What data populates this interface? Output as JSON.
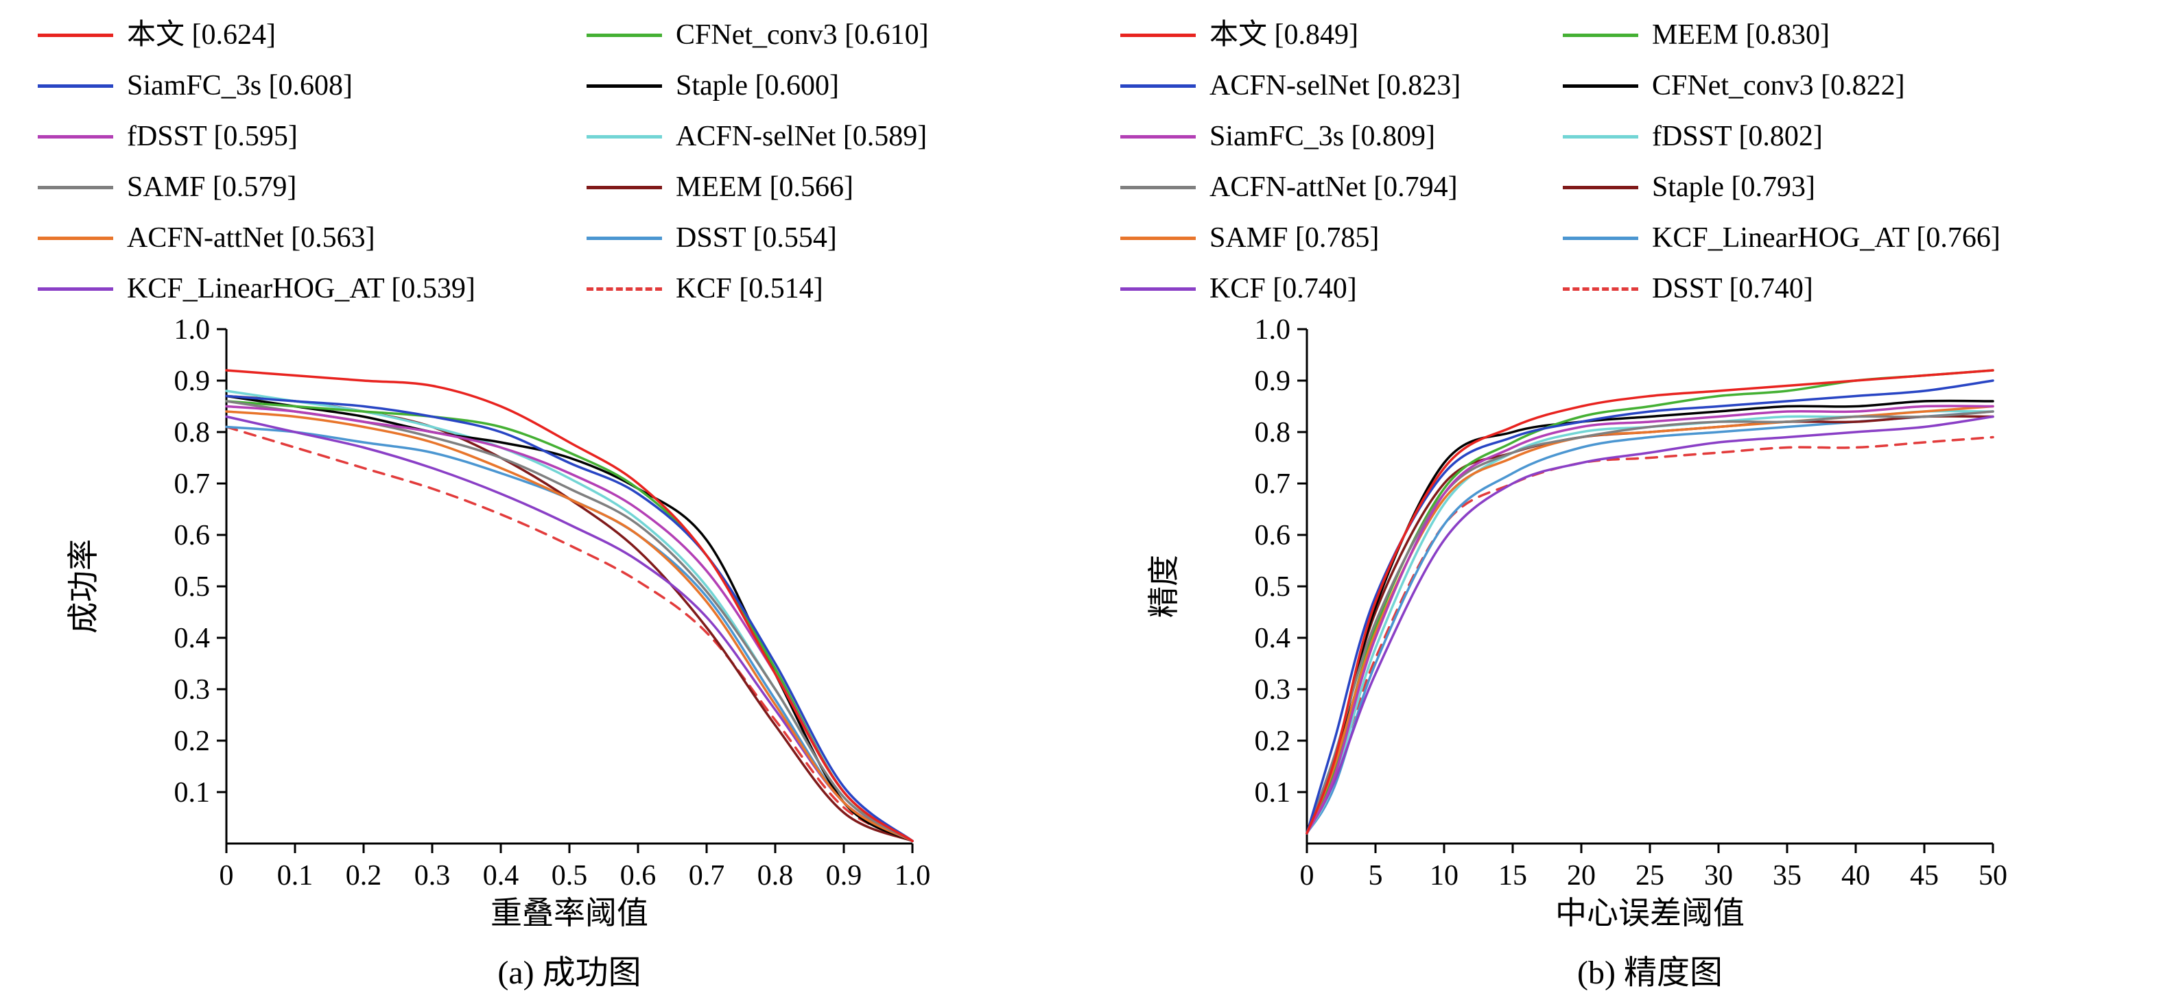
{
  "figure": {
    "background": "#ffffff"
  },
  "chart_data": [
    {
      "type": "line",
      "caption": "(a) 成功图",
      "xlabel": "重叠率阈值",
      "ylabel": "成功率",
      "xlim": [
        0,
        1.0
      ],
      "ylim": [
        0,
        1.0
      ],
      "grid": false,
      "legend_position": "top",
      "xtick_values": [
        0,
        0.1,
        0.2,
        0.3,
        0.4,
        0.5,
        0.6,
        0.7,
        0.8,
        0.9,
        1.0
      ],
      "xtick_labels": [
        "0",
        "0.1",
        "0.2",
        "0.3",
        "0.4",
        "0.5",
        "0.6",
        "0.7",
        "0.8",
        "0.9",
        "1.0"
      ],
      "ytick_values": [
        0.1,
        0.2,
        0.3,
        0.4,
        0.5,
        0.6,
        0.7,
        0.8,
        0.9,
        1.0
      ],
      "ytick_labels": [
        "0.1",
        "0.2",
        "0.3",
        "0.4",
        "0.5",
        "0.6",
        "0.7",
        "0.8",
        "0.9",
        "1.0"
      ],
      "x": [
        0,
        0.1,
        0.2,
        0.3,
        0.4,
        0.5,
        0.6,
        0.7,
        0.8,
        0.9,
        1.0
      ],
      "series": [
        {
          "label": "本文 [0.624]",
          "name": "本文",
          "score": 0.624,
          "color": "#e8231f",
          "dashed": false,
          "values": [
            0.92,
            0.91,
            0.9,
            0.89,
            0.85,
            0.78,
            0.7,
            0.56,
            0.33,
            0.1,
            0.005
          ]
        },
        {
          "label": "SiamFC_3s [0.608]",
          "name": "SiamFC_3s",
          "score": 0.608,
          "color": "#2845c4",
          "dashed": false,
          "values": [
            0.87,
            0.86,
            0.85,
            0.83,
            0.8,
            0.74,
            0.68,
            0.56,
            0.35,
            0.11,
            0.005
          ]
        },
        {
          "label": "fDSST [0.595]",
          "name": "fDSST",
          "score": 0.595,
          "color": "#b33fb5",
          "dashed": false,
          "values": [
            0.85,
            0.84,
            0.82,
            0.8,
            0.77,
            0.72,
            0.65,
            0.53,
            0.33,
            0.1,
            0.005
          ]
        },
        {
          "label": "SAMF [0.579]",
          "name": "SAMF",
          "score": 0.579,
          "color": "#7f7f7f",
          "dashed": false,
          "values": [
            0.86,
            0.84,
            0.82,
            0.79,
            0.75,
            0.69,
            0.62,
            0.49,
            0.3,
            0.09,
            0.005
          ]
        },
        {
          "label": "ACFN-attNet [0.563]",
          "name": "ACFN-attNet",
          "score": 0.563,
          "color": "#e8752b",
          "dashed": false,
          "values": [
            0.84,
            0.83,
            0.81,
            0.78,
            0.73,
            0.67,
            0.6,
            0.47,
            0.27,
            0.08,
            0.005
          ]
        },
        {
          "label": "KCF_LinearHOG_AT [0.539]",
          "name": "KCF_LinearHOG_AT",
          "score": 0.539,
          "color": "#8a3fc6",
          "dashed": false,
          "values": [
            0.83,
            0.8,
            0.77,
            0.73,
            0.68,
            0.62,
            0.55,
            0.44,
            0.26,
            0.08,
            0.005
          ]
        },
        {
          "label": "CFNet_conv3 [0.610]",
          "name": "CFNet_conv3",
          "score": 0.61,
          "color": "#44b033",
          "dashed": false,
          "values": [
            0.86,
            0.85,
            0.84,
            0.83,
            0.81,
            0.76,
            0.69,
            0.56,
            0.34,
            0.1,
            0.005
          ]
        },
        {
          "label": "Staple [0.600]",
          "name": "Staple",
          "score": 0.6,
          "color": "#000000",
          "dashed": false,
          "values": [
            0.87,
            0.85,
            0.83,
            0.8,
            0.78,
            0.75,
            0.69,
            0.59,
            0.33,
            0.08,
            0.005
          ]
        },
        {
          "label": "ACFN-selNet [0.589]",
          "name": "ACFN-selNet",
          "score": 0.589,
          "color": "#72d5d5",
          "dashed": false,
          "values": [
            0.88,
            0.86,
            0.84,
            0.81,
            0.77,
            0.71,
            0.63,
            0.5,
            0.3,
            0.09,
            0.005
          ]
        },
        {
          "label": "MEEM [0.566]",
          "name": "MEEM",
          "score": 0.566,
          "color": "#801a1a",
          "dashed": false,
          "values": [
            0.87,
            0.86,
            0.84,
            0.81,
            0.75,
            0.67,
            0.57,
            0.42,
            0.23,
            0.06,
            0.005
          ]
        },
        {
          "label": "DSST [0.554]",
          "name": "DSST",
          "score": 0.554,
          "color": "#4b96d1",
          "dashed": false,
          "values": [
            0.81,
            0.8,
            0.78,
            0.76,
            0.72,
            0.67,
            0.6,
            0.48,
            0.28,
            0.08,
            0.005
          ]
        },
        {
          "label": "KCF [0.514]",
          "name": "KCF",
          "score": 0.514,
          "color": "#e23b3b",
          "dashed": true,
          "values": [
            0.81,
            0.77,
            0.73,
            0.69,
            0.64,
            0.58,
            0.51,
            0.41,
            0.24,
            0.07,
            0.005
          ]
        }
      ]
    },
    {
      "type": "line",
      "caption": "(b) 精度图",
      "xlabel": "中心误差阈值",
      "ylabel": "精度",
      "xlim": [
        0,
        50
      ],
      "ylim": [
        0,
        1.0
      ],
      "grid": false,
      "legend_position": "top",
      "xtick_values": [
        0,
        5,
        10,
        15,
        20,
        25,
        30,
        35,
        40,
        45,
        50
      ],
      "xtick_labels": [
        "0",
        "5",
        "10",
        "15",
        "20",
        "25",
        "30",
        "35",
        "40",
        "45",
        "50"
      ],
      "ytick_values": [
        0.1,
        0.2,
        0.3,
        0.4,
        0.5,
        0.6,
        0.7,
        0.8,
        0.9,
        1.0
      ],
      "ytick_labels": [
        "0.1",
        "0.2",
        "0.3",
        "0.4",
        "0.5",
        "0.6",
        "0.7",
        "0.8",
        "0.9",
        "1.0"
      ],
      "x": [
        0,
        2,
        5,
        10,
        15,
        20,
        25,
        30,
        35,
        40,
        45,
        50
      ],
      "series": [
        {
          "label": "本文 [0.849]",
          "name": "本文",
          "score": 0.849,
          "color": "#e8231f",
          "dashed": false,
          "values": [
            0.02,
            0.16,
            0.47,
            0.73,
            0.81,
            0.85,
            0.87,
            0.88,
            0.89,
            0.9,
            0.91,
            0.92
          ]
        },
        {
          "label": "ACFN-selNet [0.823]",
          "name": "ACFN-selNet",
          "score": 0.823,
          "color": "#2845c4",
          "dashed": false,
          "values": [
            0.02,
            0.2,
            0.48,
            0.72,
            0.79,
            0.82,
            0.84,
            0.85,
            0.86,
            0.87,
            0.88,
            0.9
          ]
        },
        {
          "label": "SiamFC_3s [0.809]",
          "name": "SiamFC_3s",
          "score": 0.809,
          "color": "#b33fb5",
          "dashed": false,
          "values": [
            0.02,
            0.13,
            0.4,
            0.68,
            0.77,
            0.81,
            0.82,
            0.83,
            0.84,
            0.84,
            0.85,
            0.85
          ]
        },
        {
          "label": "ACFN-attNet [0.794]",
          "name": "ACFN-attNet",
          "score": 0.794,
          "color": "#7f7f7f",
          "dashed": false,
          "values": [
            0.02,
            0.17,
            0.43,
            0.68,
            0.76,
            0.79,
            0.81,
            0.82,
            0.82,
            0.83,
            0.83,
            0.84
          ]
        },
        {
          "label": "SAMF [0.785]",
          "name": "SAMF",
          "score": 0.785,
          "color": "#e8752b",
          "dashed": false,
          "values": [
            0.02,
            0.15,
            0.41,
            0.67,
            0.75,
            0.79,
            0.8,
            0.81,
            0.82,
            0.83,
            0.84,
            0.85
          ]
        },
        {
          "label": "KCF [0.740]",
          "name": "KCF",
          "score": 0.74,
          "color": "#8a3fc6",
          "dashed": false,
          "values": [
            0.02,
            0.12,
            0.33,
            0.59,
            0.7,
            0.74,
            0.76,
            0.78,
            0.79,
            0.8,
            0.81,
            0.83
          ]
        },
        {
          "label": "MEEM [0.830]",
          "name": "MEEM",
          "score": 0.83,
          "color": "#44b033",
          "dashed": false,
          "values": [
            0.02,
            0.14,
            0.42,
            0.69,
            0.78,
            0.83,
            0.85,
            0.87,
            0.88,
            0.9,
            0.91,
            0.92
          ]
        },
        {
          "label": "CFNet_conv3 [0.822]",
          "name": "CFNet_conv3",
          "score": 0.822,
          "color": "#000000",
          "dashed": false,
          "values": [
            0.02,
            0.15,
            0.46,
            0.74,
            0.8,
            0.82,
            0.83,
            0.84,
            0.85,
            0.85,
            0.86,
            0.86
          ]
        },
        {
          "label": "fDSST [0.802]",
          "name": "fDSST",
          "score": 0.802,
          "color": "#72d5d5",
          "dashed": false,
          "values": [
            0.02,
            0.12,
            0.38,
            0.66,
            0.76,
            0.8,
            0.81,
            0.82,
            0.83,
            0.83,
            0.84,
            0.84
          ]
        },
        {
          "label": "Staple [0.793]",
          "name": "Staple",
          "score": 0.793,
          "color": "#801a1a",
          "dashed": false,
          "values": [
            0.02,
            0.16,
            0.45,
            0.7,
            0.76,
            0.79,
            0.8,
            0.81,
            0.82,
            0.82,
            0.83,
            0.83
          ]
        },
        {
          "label": "KCF_LinearHOG_AT [0.766]",
          "name": "KCF_LinearHOG_AT",
          "score": 0.766,
          "color": "#4b96d1",
          "dashed": false,
          "values": [
            0.02,
            0.11,
            0.35,
            0.62,
            0.72,
            0.77,
            0.79,
            0.8,
            0.81,
            0.82,
            0.83,
            0.84
          ]
        },
        {
          "label": "DSST [0.740]",
          "name": "DSST",
          "score": 0.74,
          "color": "#e23b3b",
          "dashed": true,
          "values": [
            0.02,
            0.13,
            0.36,
            0.62,
            0.7,
            0.74,
            0.75,
            0.76,
            0.77,
            0.77,
            0.78,
            0.79
          ]
        }
      ]
    }
  ]
}
